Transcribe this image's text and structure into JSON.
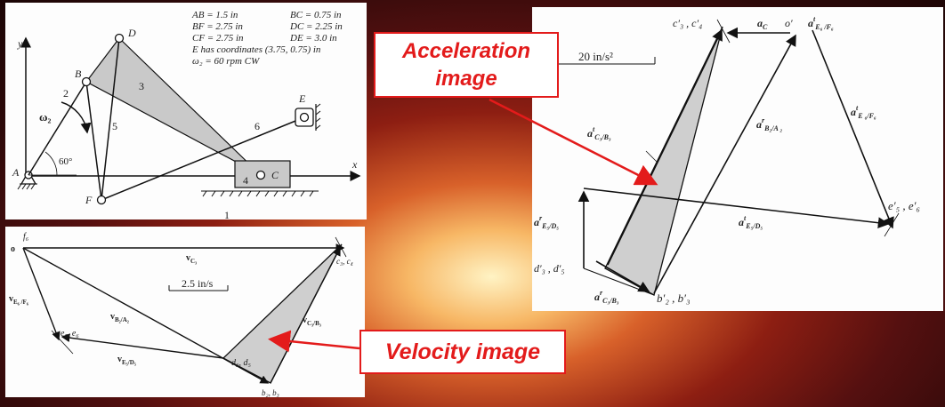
{
  "mechanism": {
    "specs": {
      "l1a": "AB = 1.5 in",
      "l1b": "BC = 0.75 in",
      "l2a": "BF = 2.75 in",
      "l2b": "DC = 2.25 in",
      "l3a": "CF = 2.75 in",
      "l3b": "DE = 3.0 in",
      "l4": "E has coordinates (3.75, 0.75) in",
      "l5": "ω₂ = 60 rpm CW"
    },
    "points": {
      "A": "A",
      "B": "B",
      "C": "C",
      "D": "D",
      "E": "E",
      "F": "F"
    },
    "links": {
      "l1": "1",
      "l2": "2",
      "l3": "3",
      "l4": "4",
      "l5": "5",
      "l6": "6"
    },
    "axes": {
      "x": "x",
      "y": "y"
    },
    "angle": "60°",
    "omega": "ω₂"
  },
  "velocity": {
    "scale": "2.5 in/s",
    "labels": {
      "f6": "f₆",
      "o": "o",
      "c3c4": "c₃, c₄",
      "e5e6": "e₅, e₆",
      "d3d5": "d₃, d₅",
      "b2b3": "b₂, b₃",
      "vC3": "v",
      "vC3_sub": "C₃",
      "vE6F6": "v",
      "vE6F6_sub": "E₆ /F₆",
      "vB2A2": "v",
      "vB2A2_sub": "B₂/A₂",
      "vE5D5": "v",
      "vE5D5_sub": "E₅/D₅",
      "vC3B3": "v",
      "vC3B3_sub": "C₃/B₃"
    }
  },
  "acceleration": {
    "scale": "20 in/s²",
    "labels": {
      "c3c4": "c′₃ , c′₄",
      "aC": "a",
      "aC_sub": "C",
      "o": "o′",
      "aE6F6": "a",
      "aE6F6_sup": "t",
      "aE6F6_sub": "E₆ /F₆",
      "aE6F6r": "a",
      "aE6F6r_sup": "t",
      "aE6F6r_sub": "E ₆/F₆",
      "aC3B3t": "a",
      "aC3B3t_sup": "t",
      "aC3B3t_sub": "C₃/B₃",
      "aB2A2": "a",
      "aB2A2_sup": "r",
      "aB2A2_sub": "B₂/A ₂",
      "aE5D5r": "a",
      "aE5D5r_sup": "r",
      "aE5D5r_sub": "E₅/D₅",
      "aE5D5t": "a",
      "aE5D5t_sup": "t",
      "aE5D5t_sub": "E₅/D₅",
      "aC3B3r": "a",
      "aC3B3r_sup": "r",
      "aC3B3r_sub": "C₃/B₃",
      "e5e6": "e′₅ , e′₆",
      "d3d5": "d′₃ , d′₅",
      "b2b3": "b′₂ , b′₃"
    }
  },
  "callouts": {
    "acceleration_line1": "Acceleration",
    "acceleration_line2": "image",
    "velocity": "Velocity image"
  },
  "colors": {
    "callout": "#e31b1b",
    "image_fill": "#cfcfcf"
  }
}
